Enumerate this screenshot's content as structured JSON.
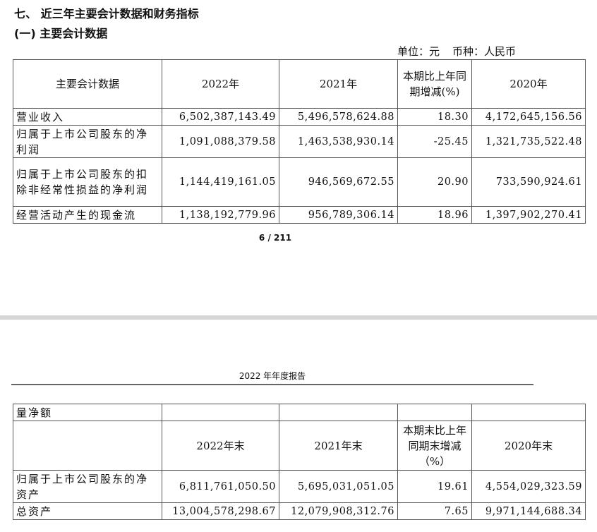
{
  "section_title": "七、 近三年主要会计数据和财务指标",
  "subsection_title": "(一) 主要会计数据",
  "unit_note": {
    "unit": "单位：元",
    "currency": "币种：人民币"
  },
  "table1": {
    "headers": [
      "主要会计数据",
      "2022年",
      "2021年",
      "本期比上年同期增减(%)",
      "2020年"
    ],
    "rows": [
      {
        "label": "营业收入",
        "v2022": "6,502,387,143.49",
        "v2021": "5,496,578,624.88",
        "change": "18.30",
        "v2020": "4,172,645,156.56"
      },
      {
        "label": "归属于上市公司股东的净利润",
        "v2022": "1,091,088,379.58",
        "v2021": "1,463,538,930.14",
        "change": "-25.45",
        "v2020": "1,321,735,522.48"
      },
      {
        "label": "归属于上市公司股东的扣除非经常性损益的净利润",
        "v2022": "1,144,419,161.05",
        "v2021": "946,569,672.55",
        "change": "20.90",
        "v2020": "733,590,924.61"
      },
      {
        "label": "经营活动产生的现金流",
        "v2022": "1,138,192,779.96",
        "v2021": "956,789,306.14",
        "change": "18.96",
        "v2020": "1,397,902,270.41"
      }
    ]
  },
  "page_number": "6 / 211",
  "report_header": "2022 年年度报告",
  "table2": {
    "carry_label": "量净额",
    "headers": [
      "",
      "2022年末",
      "2021年末",
      "本期末比上年同期末增减（%）",
      "2020年末"
    ],
    "rows": [
      {
        "label": "归属于上市公司股东的净资产",
        "v2022": "6,811,761,050.50",
        "v2021": "5,695,031,051.05",
        "change": "19.61",
        "v2020": "4,554,029,323.59"
      },
      {
        "label": "总资产",
        "v2022": "13,004,578,298.67",
        "v2021": "12,079,908,312.76",
        "change": "7.65",
        "v2020": "9,971,144,688.34"
      }
    ]
  }
}
